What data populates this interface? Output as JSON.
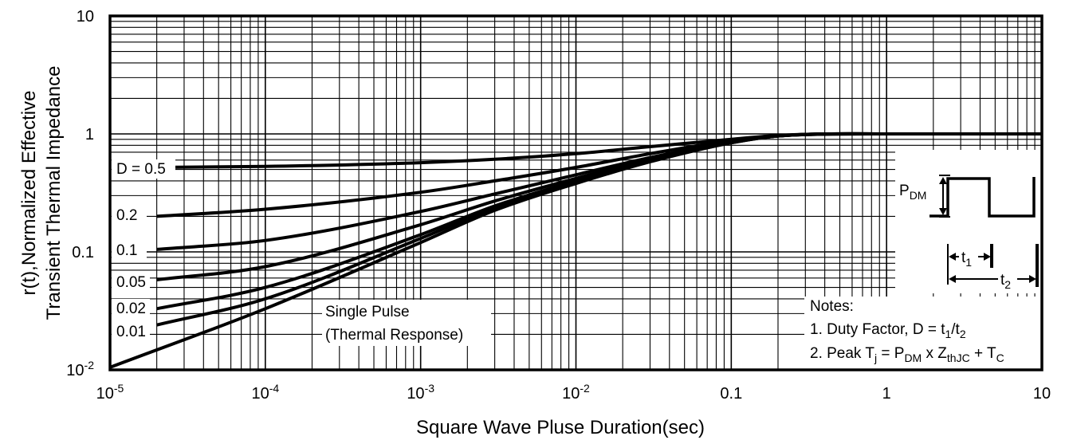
{
  "chart_data": {
    "type": "line",
    "xscale": "log",
    "yscale": "log",
    "xlim": [
      1e-05,
      10
    ],
    "ylim": [
      0.01,
      10
    ],
    "grid": true,
    "xlabel": "Square Wave Pluse Duration(sec)",
    "ylabel": [
      "r(t),Normalized Effective",
      "Transient Thermal Impedance"
    ],
    "x_ticks": [
      {
        "value": 1e-05,
        "base": "10",
        "exp": "-5"
      },
      {
        "value": 0.0001,
        "base": "10",
        "exp": "-4"
      },
      {
        "value": 0.001,
        "base": "10",
        "exp": "-3"
      },
      {
        "value": 0.01,
        "base": "10",
        "exp": "-2"
      },
      {
        "value": 0.1,
        "base": "0.1",
        "exp": ""
      },
      {
        "value": 1,
        "base": "1",
        "exp": ""
      },
      {
        "value": 10,
        "base": "10",
        "exp": ""
      }
    ],
    "y_ticks": [
      {
        "value": 10,
        "base": "10",
        "exp": ""
      },
      {
        "value": 1,
        "base": "1",
        "exp": ""
      },
      {
        "value": 0.1,
        "base": "0.1",
        "exp": ""
      },
      {
        "value": 0.01,
        "base": "10",
        "exp": "-2"
      }
    ],
    "series": [
      {
        "name": "D = 0.5",
        "x": [
          2e-05,
          0.0001,
          0.001,
          0.003,
          0.01,
          0.03,
          0.1,
          0.2,
          1,
          10
        ],
        "y": [
          0.52,
          0.53,
          0.57,
          0.61,
          0.68,
          0.78,
          0.9,
          0.97,
          1.0,
          1.0
        ]
      },
      {
        "name": "0.2",
        "x": [
          2e-05,
          0.0001,
          0.001,
          0.003,
          0.01,
          0.03,
          0.1,
          0.2,
          1,
          10
        ],
        "y": [
          0.2,
          0.23,
          0.32,
          0.4,
          0.52,
          0.68,
          0.88,
          0.97,
          1.0,
          1.0
        ]
      },
      {
        "name": "0.1",
        "x": [
          2e-05,
          0.0001,
          0.001,
          0.003,
          0.01,
          0.03,
          0.1,
          0.2,
          1,
          10
        ],
        "y": [
          0.105,
          0.125,
          0.22,
          0.31,
          0.45,
          0.63,
          0.86,
          0.96,
          1.0,
          1.0
        ]
      },
      {
        "name": "0.05",
        "x": [
          2e-05,
          0.0001,
          0.001,
          0.003,
          0.01,
          0.03,
          0.1,
          0.2,
          1,
          10
        ],
        "y": [
          0.058,
          0.075,
          0.17,
          0.27,
          0.42,
          0.61,
          0.85,
          0.96,
          1.0,
          1.0
        ]
      },
      {
        "name": "0.02",
        "x": [
          2e-05,
          0.0001,
          0.001,
          0.003,
          0.01,
          0.03,
          0.1,
          0.2,
          1,
          10
        ],
        "y": [
          0.033,
          0.05,
          0.14,
          0.245,
          0.4,
          0.6,
          0.85,
          0.96,
          1.0,
          1.0
        ]
      },
      {
        "name": "0.01",
        "x": [
          2e-05,
          0.0001,
          0.001,
          0.003,
          0.01,
          0.03,
          0.1,
          0.2,
          1,
          10
        ],
        "y": [
          0.024,
          0.04,
          0.13,
          0.235,
          0.39,
          0.59,
          0.84,
          0.96,
          1.0,
          1.0
        ]
      },
      {
        "name": "Single Pulse",
        "x": [
          1e-05,
          0.0001,
          0.001,
          0.003,
          0.01,
          0.03,
          0.1,
          0.2,
          1,
          10
        ],
        "y": [
          0.0105,
          0.033,
          0.12,
          0.225,
          0.38,
          0.58,
          0.84,
          0.96,
          1.0,
          1.0
        ]
      }
    ],
    "annotations": {
      "single_pulse": [
        "Single Pulse",
        "(Thermal Response)"
      ],
      "pdm": {
        "base": "P",
        "sub": "DM"
      },
      "t1": {
        "base": "t",
        "sub": "1"
      },
      "t2": {
        "base": "t",
        "sub": "2"
      },
      "notes_title": "Notes:",
      "note1": {
        "prefix": "1.  Duty Factor, D = t",
        "sub1": "1",
        "mid": "/t",
        "sub2": "2"
      },
      "note2": {
        "prefix": "2.  Peak T",
        "sub_j": "j",
        "mid1": " = P",
        "sub_dm": "DM",
        "mid2": " x Z",
        "sub_th": "thJC",
        "mid3": " + T",
        "sub_c": "C"
      }
    }
  }
}
